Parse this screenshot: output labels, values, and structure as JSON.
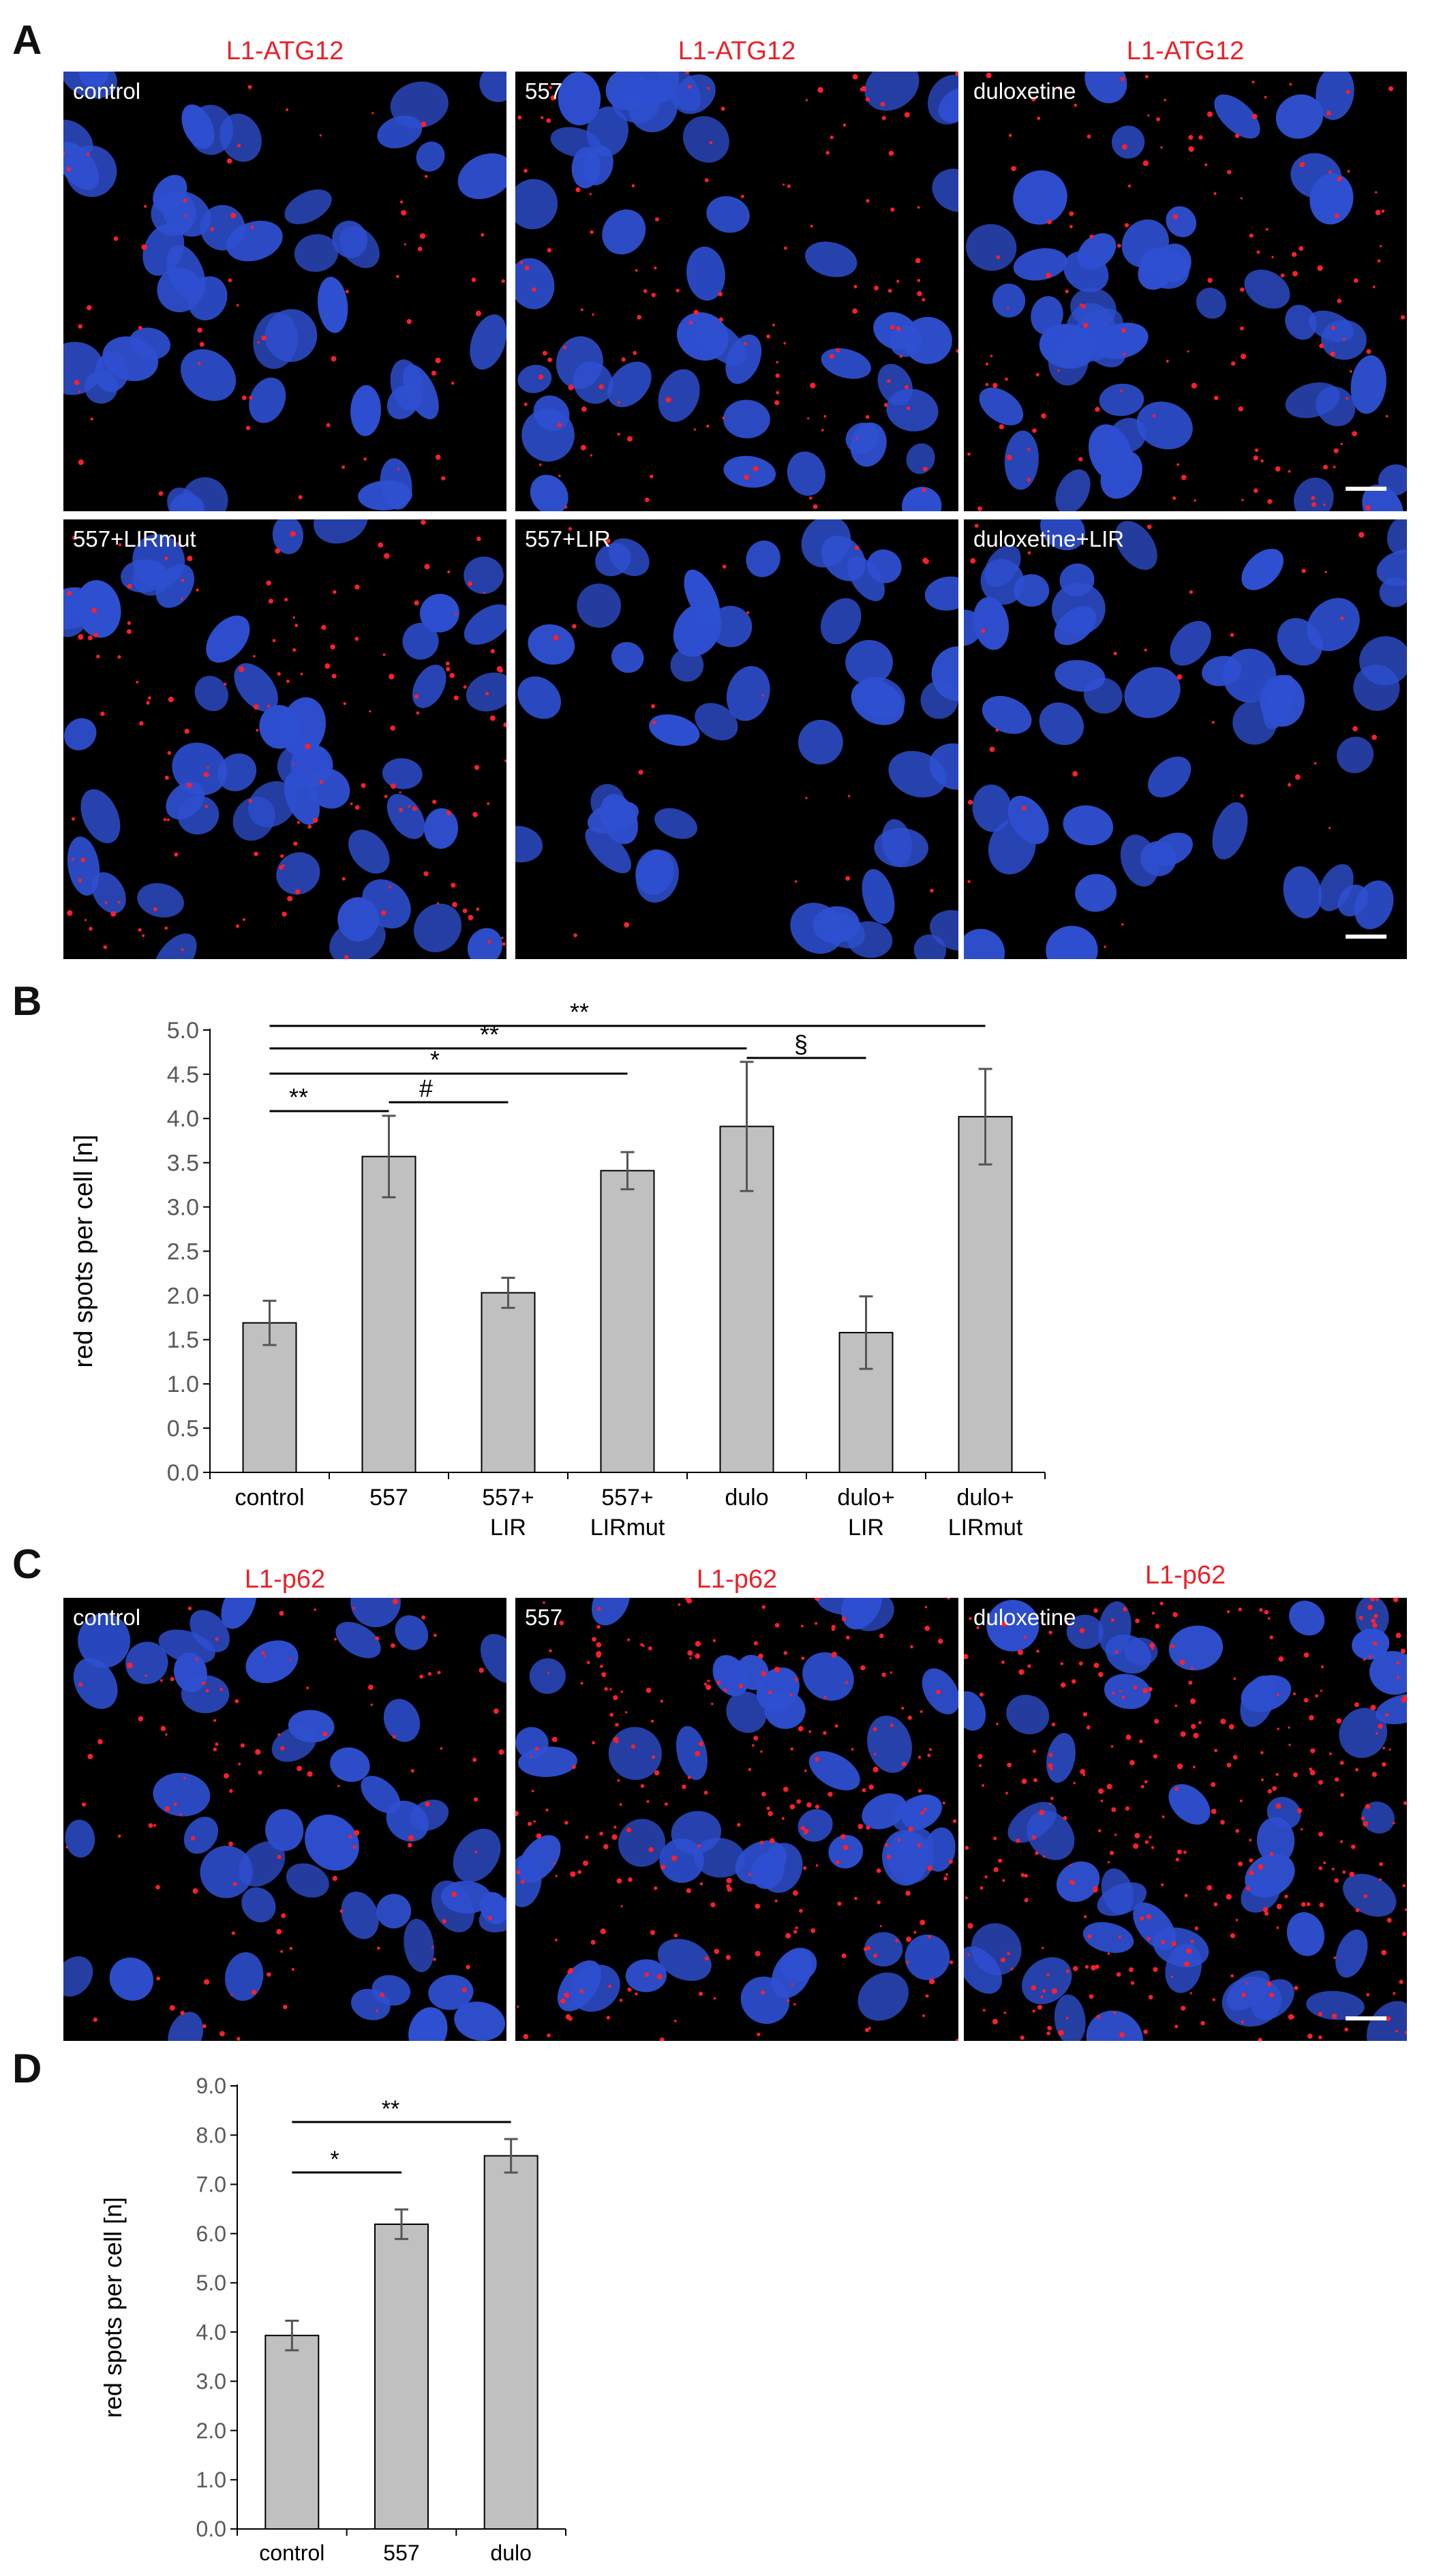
{
  "panels": {
    "A": "A",
    "B": "B",
    "C": "C",
    "D": "D"
  },
  "panel_a": {
    "titles": [
      "L1-ATG12",
      "L1-ATG12",
      "L1-ATG12"
    ],
    "images": [
      "control",
      "557",
      "duloxetine",
      "557+LIRmut",
      "557+LIR",
      "duloxetine+LIR"
    ]
  },
  "panel_c": {
    "titles": [
      "L1-p62",
      "L1-p62",
      "L1-p62"
    ],
    "images": [
      "control",
      "557",
      "duloxetine"
    ]
  },
  "colors": {
    "title_red": "#e8222a",
    "nuclei_blue": "#2e4fd0",
    "spot_red": "#ff1f2c",
    "bar_fill": "#c0c0c0"
  },
  "chart_data": [
    {
      "type": "bar",
      "panel": "B",
      "categories": [
        "control",
        "557",
        "557+ LIR",
        "557+ LIRmut",
        "dulo",
        "dulo+ LIR",
        "dulo+ LIRmut"
      ],
      "category_lines": [
        [
          "control"
        ],
        [
          "557"
        ],
        [
          "557+",
          "LIR"
        ],
        [
          "557+",
          "LIRmut"
        ],
        [
          "dulo"
        ],
        [
          "dulo+",
          "LIR"
        ],
        [
          "dulo+",
          "LIRmut"
        ]
      ],
      "values": [
        1.69,
        3.57,
        2.03,
        3.41,
        3.91,
        1.58,
        4.02
      ],
      "errors": [
        0.25,
        0.46,
        0.17,
        0.21,
        0.73,
        0.41,
        0.54
      ],
      "ylabel": "red spots per cell [n]",
      "ylim": [
        0,
        5.0
      ],
      "yticks": [
        "0.0",
        "0.5",
        "1.0",
        "1.5",
        "2.0",
        "2.5",
        "3.0",
        "3.5",
        "4.0",
        "4.5",
        "5.0"
      ],
      "significance": [
        {
          "from": 0,
          "to": 1,
          "label": "**"
        },
        {
          "from": 1,
          "to": 2,
          "label": "#"
        },
        {
          "from": 0,
          "to": 3,
          "label": "*"
        },
        {
          "from": 0,
          "to": 4,
          "label": "**"
        },
        {
          "from": 4,
          "to": 5,
          "label": "§"
        },
        {
          "from": 0,
          "to": 6,
          "label": "**"
        }
      ]
    },
    {
      "type": "bar",
      "panel": "D",
      "categories": [
        "control",
        "557",
        "dulo"
      ],
      "category_lines": [
        [
          "control"
        ],
        [
          "557"
        ],
        [
          "dulo"
        ]
      ],
      "values": [
        3.93,
        6.19,
        7.58
      ],
      "errors": [
        0.3,
        0.3,
        0.34
      ],
      "ylabel": "red spots per cell [n]",
      "ylim": [
        0,
        9.0
      ],
      "yticks": [
        "0.0",
        "1.0",
        "2.0",
        "3.0",
        "4.0",
        "5.0",
        "6.0",
        "7.0",
        "8.0",
        "9.0"
      ],
      "significance": [
        {
          "from": 0,
          "to": 1,
          "label": "*"
        },
        {
          "from": 0,
          "to": 2,
          "label": "**"
        }
      ]
    }
  ]
}
